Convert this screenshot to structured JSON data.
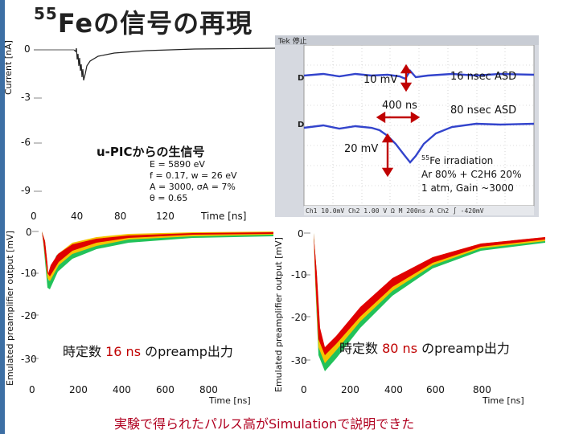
{
  "slide": {
    "title_sup": "55",
    "title_main": "Feの信号の再現",
    "footer": "実験で得られたパルス高がSimulationで説明できた"
  },
  "top_left_plot": {
    "ylabel": "Current [nA]",
    "yticks": [
      "0",
      "-3",
      "-6",
      "-9"
    ],
    "xticks": [
      "0",
      "40",
      "80",
      "120"
    ],
    "xlabel": "Time [ns]",
    "legend_title": "u-PICからの生信号",
    "params": [
      "E = 5890 eV",
      "f = 0.17, w = 26 eV",
      "A = 3000, σA = 7%",
      "θ = 0.65"
    ]
  },
  "scope": {
    "header": "Tek 停止",
    "anno_10mv": "10 mV",
    "anno_16ns": "16 nsec ASD",
    "anno_400ns": "400 ns",
    "anno_80ns": "80 nsec ASD",
    "anno_20mv": "20 mV",
    "irr_sup": "55",
    "irr_line1": "Fe irradiation",
    "irr_line2": "Ar 80% + C2H6 20%",
    "irr_line3": "1 atm, Gain ~3000",
    "status": "Ch1  10.0mV   Ch2  1.00 V  Ω   M 200ns  A Ch2 ∫  -420mV"
  },
  "bottom_left_plot": {
    "ylabel": "Emulated preamplifier output [mV]",
    "yticks": [
      "0",
      "-10",
      "-20",
      "-30"
    ],
    "xticks": [
      "0",
      "200",
      "400",
      "600",
      "800"
    ],
    "xlabel": "Time [ns]",
    "caption_prefix": "時定数",
    "caption_value": "16 ns",
    "caption_suffix": "のpreamp出力"
  },
  "bottom_right_plot": {
    "ylabel": "Emulated preamplifier output [mV]",
    "yticks": [
      "0",
      "-10",
      "-20",
      "-30"
    ],
    "xticks": [
      "0",
      "200",
      "400",
      "600",
      "800"
    ],
    "xlabel": "Time [ns]",
    "caption_prefix": "時定数",
    "caption_value": "80 ns",
    "caption_suffix": "のpreamp出力"
  },
  "colors": {
    "accent_bar": "#3d6fa4",
    "scope_trace": "#3344cc",
    "scope_bg": "#ffffff",
    "arrow": "#c00000",
    "hot": "#e00000",
    "warm": "#f5c400",
    "cool": "#22c25a"
  }
}
